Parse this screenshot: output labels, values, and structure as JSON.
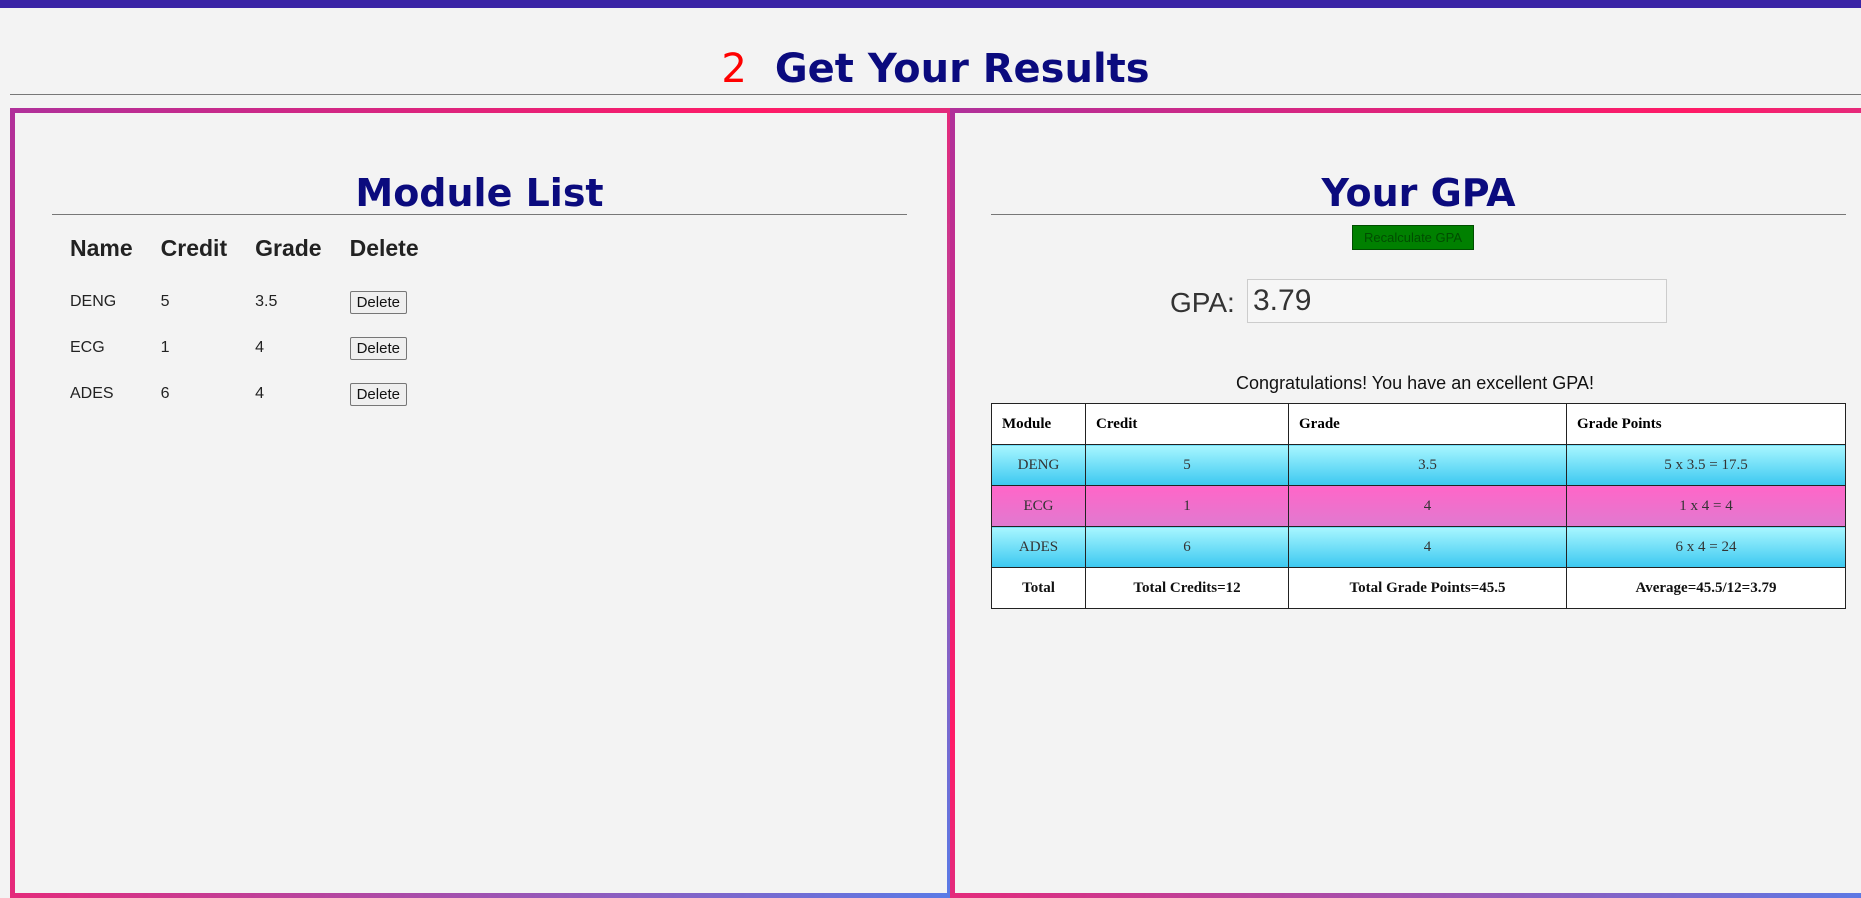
{
  "section": {
    "step": "2",
    "title": "Get Your Results"
  },
  "module_list": {
    "title": "Module List",
    "headers": [
      "Name",
      "Credit",
      "Grade",
      "Delete"
    ],
    "rows": [
      {
        "name": "DENG",
        "credit": "5",
        "grade": "3.5",
        "delete_label": "Delete"
      },
      {
        "name": "ECG",
        "credit": "1",
        "grade": "4",
        "delete_label": "Delete"
      },
      {
        "name": "ADES",
        "credit": "6",
        "grade": "4",
        "delete_label": "Delete"
      }
    ]
  },
  "gpa_panel": {
    "title": "Your GPA",
    "recalc_label": "Recalculate GPA",
    "gpa_label": "GPA:",
    "gpa_value": "3.79",
    "message": "Congratulations! You have an excellent GPA!",
    "table": {
      "headers": [
        "Module",
        "Credit",
        "Grade",
        "Grade Points"
      ],
      "rows": [
        {
          "module": "DENG",
          "credit": "5",
          "grade": "3.5",
          "points": "5 x 3.5 = 17.5"
        },
        {
          "module": "ECG",
          "credit": "1",
          "grade": "4",
          "points": "1 x 4 = 4"
        },
        {
          "module": "ADES",
          "credit": "6",
          "grade": "4",
          "points": "6 x 4 = 24"
        }
      ],
      "totals": {
        "label": "Total",
        "credits": "Total Credits=12",
        "points": "Total Grade Points=45.5",
        "average": "Average=45.5/12=3.79"
      }
    }
  },
  "colors": {
    "header_bar": "#3a24a6",
    "title_text": "#0b0b7e",
    "step_number": "#ff0000",
    "recalc_button": "#008000",
    "row_blue": "#3cc8f0",
    "row_pink": "#ff66c8"
  }
}
